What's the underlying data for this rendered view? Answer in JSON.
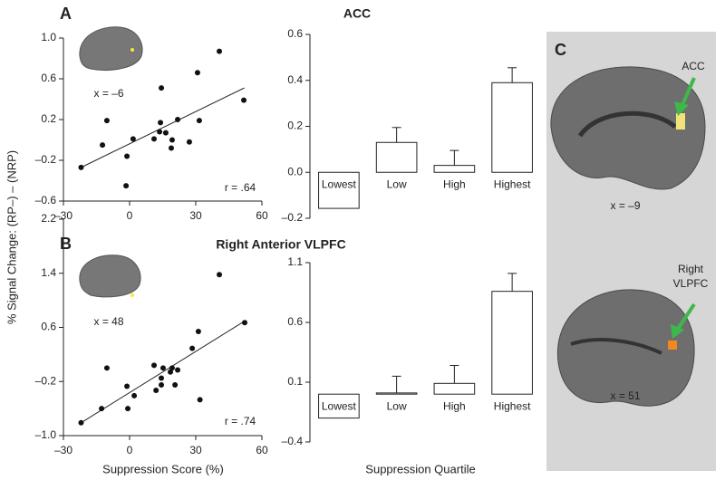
{
  "chart_data": [
    {
      "type": "scatter",
      "panel": "A",
      "y_label": "% Signal Change: (RP–) – (NRP)",
      "annotations": [
        "x = –6",
        "r = .64"
      ],
      "x": [
        -22,
        -12.3,
        -10.3,
        -1.2,
        1.6,
        -1.6,
        11.1,
        14.4,
        14.0,
        13.6,
        16.4,
        18.9,
        19.3,
        21.8,
        27.1,
        30.8,
        31.6,
        40.7,
        51.8
      ],
      "values": [
        -0.27,
        -0.05,
        0.19,
        -0.16,
        0.01,
        -0.45,
        0.01,
        0.51,
        0.17,
        0.08,
        0.07,
        -0.08,
        0.0,
        0.2,
        -0.02,
        0.66,
        0.19,
        0.87,
        0.39
      ],
      "fit": {
        "x": [
          -22,
          52
        ],
        "values": [
          -0.27,
          0.51
        ]
      },
      "xlim": [
        -30,
        60
      ],
      "xticks": [
        {
          "value": -30,
          "label": "–30"
        },
        0,
        30,
        60
      ],
      "ylim": [
        -0.6,
        1.0
      ],
      "yticks": [
        {
          "value": -0.6,
          "label": "–0.6"
        },
        {
          "value": -0.2,
          "label": "–0.2"
        },
        0.2,
        0.6,
        {
          "value": 1.0,
          "label": "1.0"
        }
      ]
    },
    {
      "type": "bar",
      "title": "ACC",
      "categories": [
        "Lowest",
        "Low",
        "High",
        "Highest"
      ],
      "values": [
        -0.157,
        0.13,
        0.03,
        0.39
      ],
      "errors": [
        0.065,
        0.065,
        0.065,
        0.065
      ],
      "color": "#ffffff",
      "ylim": [
        -0.2,
        0.6
      ],
      "yticks": [
        {
          "value": -0.2,
          "label": "–0.2"
        },
        {
          "value": 0,
          "label": "0.0"
        },
        0.2,
        0.4,
        0.6
      ]
    },
    {
      "type": "scatter",
      "panel": "B",
      "x_label": "Suppression Score (%)",
      "annotations": [
        "x = 48",
        "r = .74"
      ],
      "x": [
        -22,
        -12.7,
        -10.3,
        -1.2,
        -0.8,
        2.1,
        11.1,
        12,
        14.4,
        14.4,
        15.2,
        18.5,
        19.3,
        21.8,
        20.6,
        28.4,
        31.2,
        31.9,
        40.7,
        52.2
      ],
      "values": [
        -0.81,
        -0.6,
        0.0,
        -0.27,
        -0.6,
        -0.41,
        0.04,
        -0.33,
        -0.15,
        -0.25,
        0.0,
        -0.06,
        0.0,
        -0.03,
        -0.25,
        0.29,
        0.54,
        -0.47,
        1.38,
        0.67
      ],
      "fit": {
        "x": [
          -22,
          52
        ],
        "values": [
          -0.81,
          0.69
        ]
      },
      "xlim": [
        -30,
        60
      ],
      "xticks": [
        {
          "value": -30,
          "label": "–30"
        },
        0,
        30,
        60
      ],
      "ylim": [
        -1.0,
        2.2
      ],
      "yticks": [
        {
          "value": -1.0,
          "label": "–1.0"
        },
        {
          "value": -0.2,
          "label": "–0.2"
        },
        0.6,
        1.4,
        2.2
      ]
    },
    {
      "type": "bar",
      "title": "Right Anterior VLPFC",
      "x_label": "Suppression Quartile",
      "categories": [
        "Lowest",
        "Low",
        "High",
        "Highest"
      ],
      "values": [
        -0.2,
        0.01,
        0.09,
        0.86
      ],
      "errors": [
        0.13,
        0.14,
        0.15,
        0.15
      ],
      "color": "#ffffff",
      "ylim": [
        -0.4,
        1.1
      ],
      "yticks": [
        {
          "value": -0.4,
          "label": "–0.4"
        },
        0.1,
        0.6,
        1.1
      ]
    }
  ],
  "panel_c": {
    "letter": "C",
    "images": [
      {
        "label": [
          "ACC"
        ],
        "caption": "x = –9"
      },
      {
        "label": [
          "Right",
          "VLPFC"
        ],
        "caption": "x = 51"
      }
    ]
  }
}
